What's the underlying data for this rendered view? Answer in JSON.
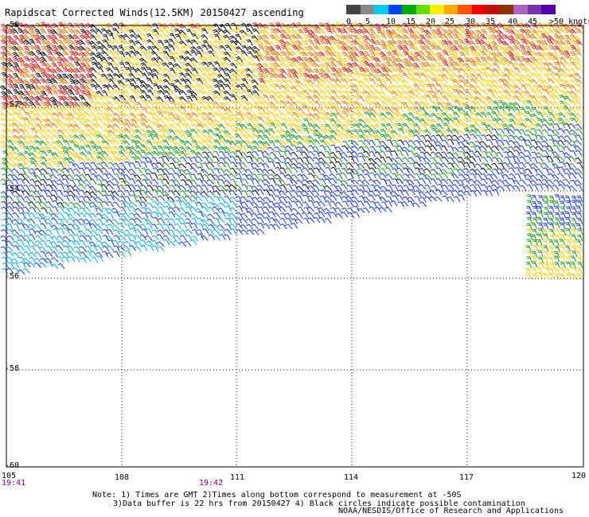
{
  "title": "Rapidscat Corrected Winds(12.5KM) 20150427 ascending",
  "legend": {
    "colors": [
      "#444444",
      "#888888",
      "#00ccee",
      "#0044ee",
      "#00aa00",
      "#66dd00",
      "#ffee00",
      "#ffaa00",
      "#ff5500",
      "#ee0000",
      "#bb1111",
      "#883300",
      "#aa66bb",
      "#7733aa",
      "#5500aa"
    ],
    "labels": [
      "0",
      "5",
      "10",
      "15",
      "20",
      "25",
      "30",
      "35",
      "40",
      "45",
      ">50 knots"
    ]
  },
  "lat_labels": [
    "-50",
    "-52",
    "-54",
    "-56",
    "-58",
    "-60"
  ],
  "lon_labels": [
    "105",
    "108",
    "111",
    "114",
    "117",
    "120"
  ],
  "time_labels": [
    "19:41",
    "19:42"
  ],
  "notes": {
    "line1": "Note: 1) Times are GMT 2)Times along bottom correspond to measurement at -50S",
    "line2": "3)Data buffer is 22 hrs from 20150427 4) Black circles indicate possible contamination",
    "credit": "NOAA/NESDIS/Office of Research and Applications"
  },
  "map": {
    "lon_range": [
      105,
      120
    ],
    "lat_range": [
      -60,
      -50
    ],
    "wind_color_bands": [
      {
        "name": "red",
        "color": "#dd1111"
      },
      {
        "name": "orange",
        "color": "#ee7700"
      },
      {
        "name": "yellow",
        "color": "#ffcc00"
      },
      {
        "name": "green",
        "color": "#119911"
      },
      {
        "name": "blue",
        "color": "#1133dd"
      },
      {
        "name": "cyan",
        "color": "#00aadd"
      },
      {
        "name": "black",
        "color": "#000000"
      }
    ]
  }
}
